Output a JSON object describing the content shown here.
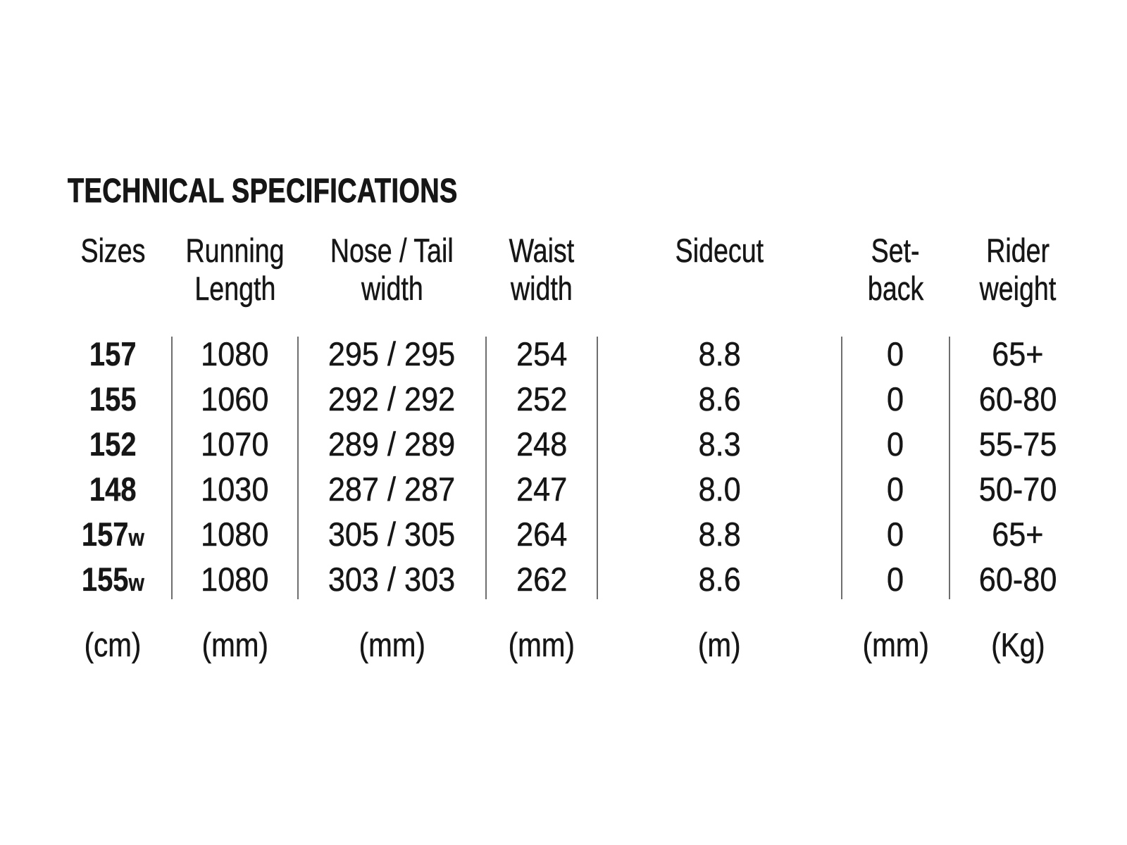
{
  "title": "TECHNICAL SPECIFICATIONS",
  "colors": {
    "background": "#ffffff",
    "text": "#161616",
    "divider": "#6e6e6e"
  },
  "table": {
    "columns": [
      {
        "id": "sizes",
        "label_line1": "Sizes",
        "label_line2": "",
        "unit": "(cm)"
      },
      {
        "id": "running_length",
        "label_line1": "Running",
        "label_line2": "Length",
        "unit": "(mm)"
      },
      {
        "id": "nose_tail_width",
        "label_line1": "Nose / Tail",
        "label_line2": "width",
        "unit": "(mm)"
      },
      {
        "id": "waist_width",
        "label_line1": "Waist",
        "label_line2": "width",
        "unit": "(mm)"
      },
      {
        "id": "sidecut",
        "label_line1": "Sidecut",
        "label_line2": "",
        "unit": "(m)"
      },
      {
        "id": "setback",
        "label_line1": "Set-",
        "label_line2": "back",
        "unit": "(mm)"
      },
      {
        "id": "rider_weight",
        "label_line1": "Rider",
        "label_line2": "weight",
        "unit": "(Kg)"
      }
    ],
    "rows": [
      {
        "size": "157",
        "running_length": "1080",
        "nose_tail": "295 / 295",
        "waist": "254",
        "sidecut": "8.8",
        "setback": "0",
        "rider_weight": "65+"
      },
      {
        "size": "155",
        "running_length": "1060",
        "nose_tail": "292 / 292",
        "waist": "252",
        "sidecut": "8.6",
        "setback": "0",
        "rider_weight": "60-80"
      },
      {
        "size": "152",
        "running_length": "1070",
        "nose_tail": "289 / 289",
        "waist": "248",
        "sidecut": "8.3",
        "setback": "0",
        "rider_weight": "55-75"
      },
      {
        "size": "148",
        "running_length": "1030",
        "nose_tail": "287 / 287",
        "waist": "247",
        "sidecut": "8.0",
        "setback": "0",
        "rider_weight": "50-70"
      },
      {
        "size": "157w",
        "running_length": "1080",
        "nose_tail": "305 / 305",
        "waist": "264",
        "sidecut": "8.8",
        "setback": "0",
        "rider_weight": "65+"
      },
      {
        "size": "155w",
        "running_length": "1080",
        "nose_tail": "303 / 303",
        "waist": "262",
        "sidecut": "8.6",
        "setback": "0",
        "rider_weight": "60-80"
      }
    ]
  }
}
